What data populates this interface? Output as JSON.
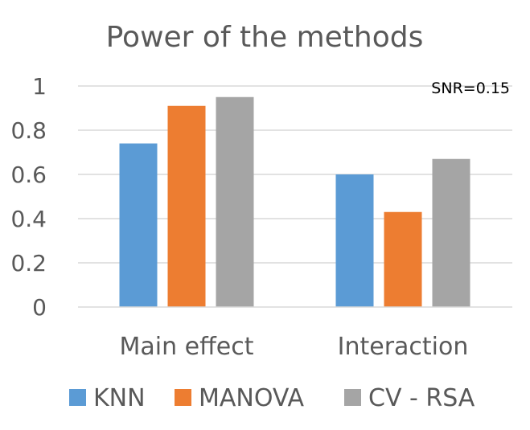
{
  "chart_data": {
    "type": "bar",
    "title": "Power of the methods",
    "annotation": "SNR=0.15",
    "categories": [
      "Main effect",
      "Interaction"
    ],
    "series": [
      {
        "name": "KNN",
        "values": [
          0.74,
          0.6
        ],
        "color": "#5B9BD5"
      },
      {
        "name": "MANOVA",
        "values": [
          0.91,
          0.43
        ],
        "color": "#ED7D31"
      },
      {
        "name": "CV - RSA",
        "values": [
          0.95,
          0.67
        ],
        "color": "#A5A5A5"
      }
    ],
    "y_ticks": [
      "0",
      "0.2",
      "0.4",
      "0.6",
      "0.8",
      "1"
    ],
    "ylim": [
      0,
      1
    ],
    "xlabel": "",
    "ylabel": "",
    "grid": true,
    "legend_position": "bottom"
  }
}
